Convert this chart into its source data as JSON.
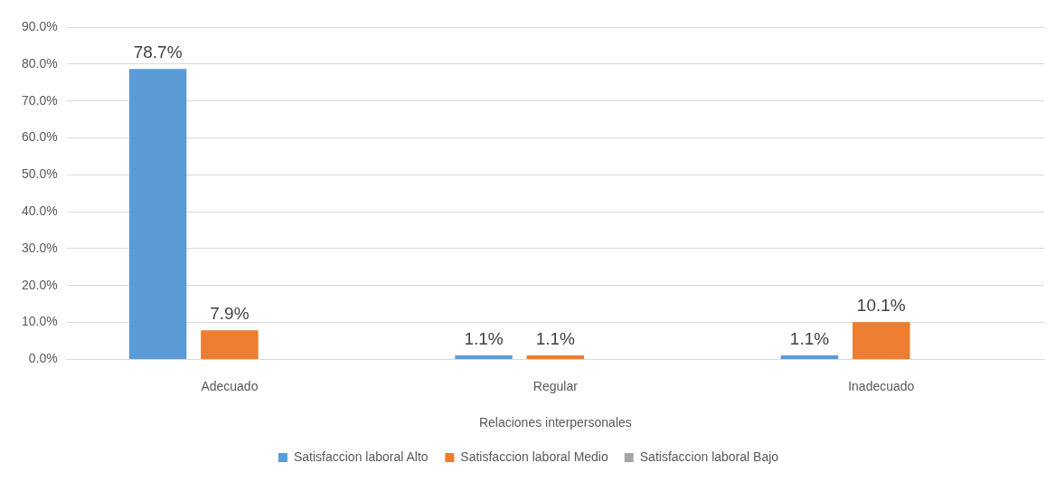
{
  "chart_data": {
    "type": "bar",
    "xlabel": "Relaciones interpersonales",
    "categories": [
      "Adecuado",
      "Regular",
      "Inadecuado"
    ],
    "series": [
      {
        "name": "Satisfaccion laboral Alto",
        "color": "#5b9bd5",
        "values": [
          78.7,
          1.1,
          1.1
        ],
        "value_labels": [
          "78.7%",
          "1.1%",
          "1.1%"
        ]
      },
      {
        "name": "Satisfaccion laboral Medio",
        "color": "#ed7d31",
        "values": [
          7.9,
          1.1,
          10.1
        ],
        "value_labels": [
          "7.9%",
          "1.1%",
          "10.1%"
        ]
      },
      {
        "name": "Satisfaccion laboral Bajo",
        "color": "#a5a5a5",
        "values": [
          null,
          null,
          null
        ]
      }
    ],
    "ylim": [
      0,
      90
    ],
    "yticks": [
      {
        "value": 0,
        "label": "0.0%"
      },
      {
        "value": 10,
        "label": "10.0%"
      },
      {
        "value": 20,
        "label": "20.0%"
      },
      {
        "value": 30,
        "label": "30.0%"
      },
      {
        "value": 40,
        "label": "40.0%"
      },
      {
        "value": 50,
        "label": "50.0%"
      },
      {
        "value": 60,
        "label": "60.0%"
      },
      {
        "value": 70,
        "label": "70.0%"
      },
      {
        "value": 80,
        "label": "80.0%"
      },
      {
        "value": 90,
        "label": "90.0%"
      }
    ],
    "grid": "y",
    "legend": "bottom"
  }
}
